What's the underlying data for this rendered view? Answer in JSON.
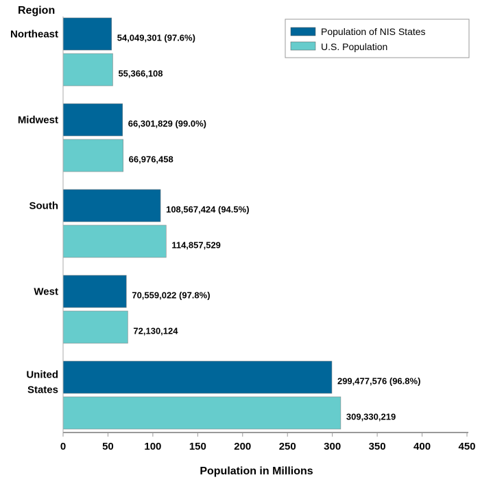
{
  "chart_data": {
    "type": "bar",
    "orientation": "horizontal",
    "title": "",
    "ylabel": "Region",
    "xlabel": "Population in Millions",
    "xlim": [
      0,
      450
    ],
    "xticks": [
      0,
      50,
      100,
      150,
      200,
      250,
      300,
      350,
      400,
      450
    ],
    "grid": false,
    "legend_position": "top-right",
    "categories": [
      {
        "label": [
          "Northeast"
        ]
      },
      {
        "label": [
          "Midwest"
        ]
      },
      {
        "label": [
          "South"
        ]
      },
      {
        "label": [
          "West"
        ]
      },
      {
        "label": [
          "United",
          "States"
        ]
      }
    ],
    "series": [
      {
        "name": "Population of NIS States",
        "color": "#006699",
        "values": [
          54.049301,
          66.301829,
          108.567424,
          70.559022,
          299.477576
        ],
        "data_labels": [
          "54,049,301  (97.6%)",
          "66,301,829  (99.0%)",
          "108,567,424  (94.5%)",
          "70,559,022  (97.8%)",
          "299,477,576  (96.8%)"
        ]
      },
      {
        "name": "U.S. Population",
        "color": "#66CCCC",
        "values": [
          55.366108,
          66.976458,
          114.857529,
          72.130124,
          309.330219
        ],
        "data_labels": [
          "55,366,108",
          "66,976,458",
          "114,857,529",
          "72,130,124",
          "309,330,219"
        ]
      }
    ]
  }
}
